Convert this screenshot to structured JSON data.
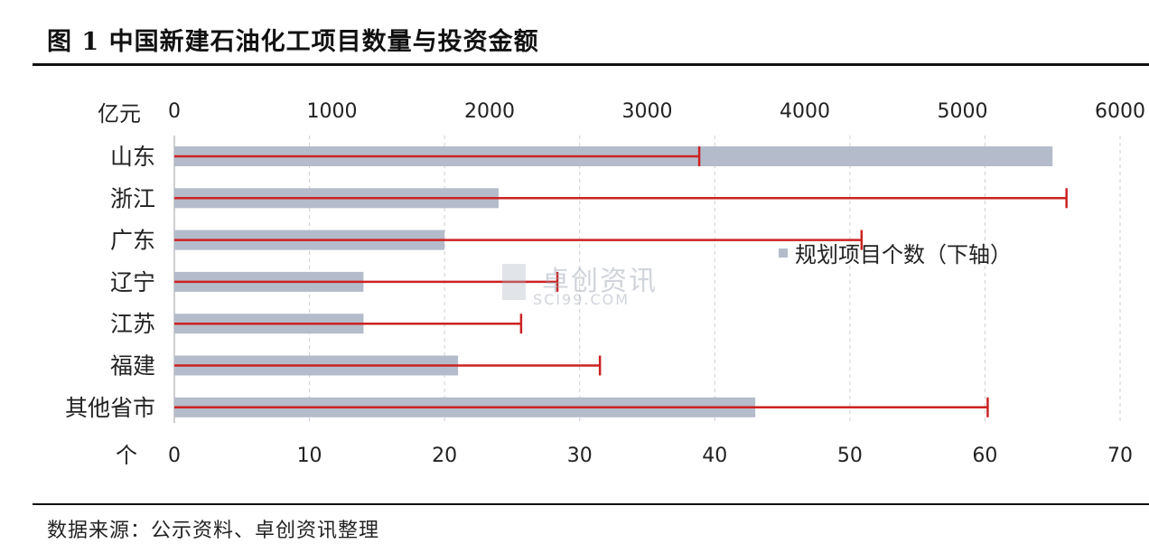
{
  "title": "图 1  中国新建石油化工项目数量与投资金额",
  "source": "数据来源：公示资料、卓创资讯整理",
  "watermark": {
    "text": "卓创资讯",
    "sub": "SCI99.COM"
  },
  "colors": {
    "bar": "#b4bccb",
    "line": "#cc2222",
    "grid": "#cfcfcf"
  },
  "chart_data": {
    "type": "bar",
    "orientation": "horizontal",
    "categories": [
      "山东",
      "浙江",
      "广东",
      "辽宁",
      "江苏",
      "福建",
      "其他省市"
    ],
    "series": [
      {
        "name": "规划项目个数（下轴）",
        "axis": "bottom",
        "style": "bar",
        "values": [
          65,
          24,
          20,
          14,
          14,
          21,
          43
        ]
      },
      {
        "name": "",
        "axis": "top",
        "style": "line-with-cap",
        "values": [
          3330,
          5660,
          4360,
          2430,
          2200,
          2700,
          5160
        ]
      }
    ],
    "top_axis": {
      "unit": "亿元",
      "range": [
        0,
        6000
      ],
      "ticks": [
        "0",
        "1000",
        "2000",
        "3000",
        "4000",
        "5000",
        "6000"
      ]
    },
    "bottom_axis": {
      "unit": "个",
      "range": [
        0,
        70
      ],
      "ticks": [
        "0",
        "10",
        "20",
        "30",
        "40",
        "50",
        "60",
        "70"
      ]
    },
    "grid": "vertical-dashed",
    "legend": {
      "position": "right-middle",
      "entries": [
        "规划项目个数（下轴）"
      ]
    }
  }
}
